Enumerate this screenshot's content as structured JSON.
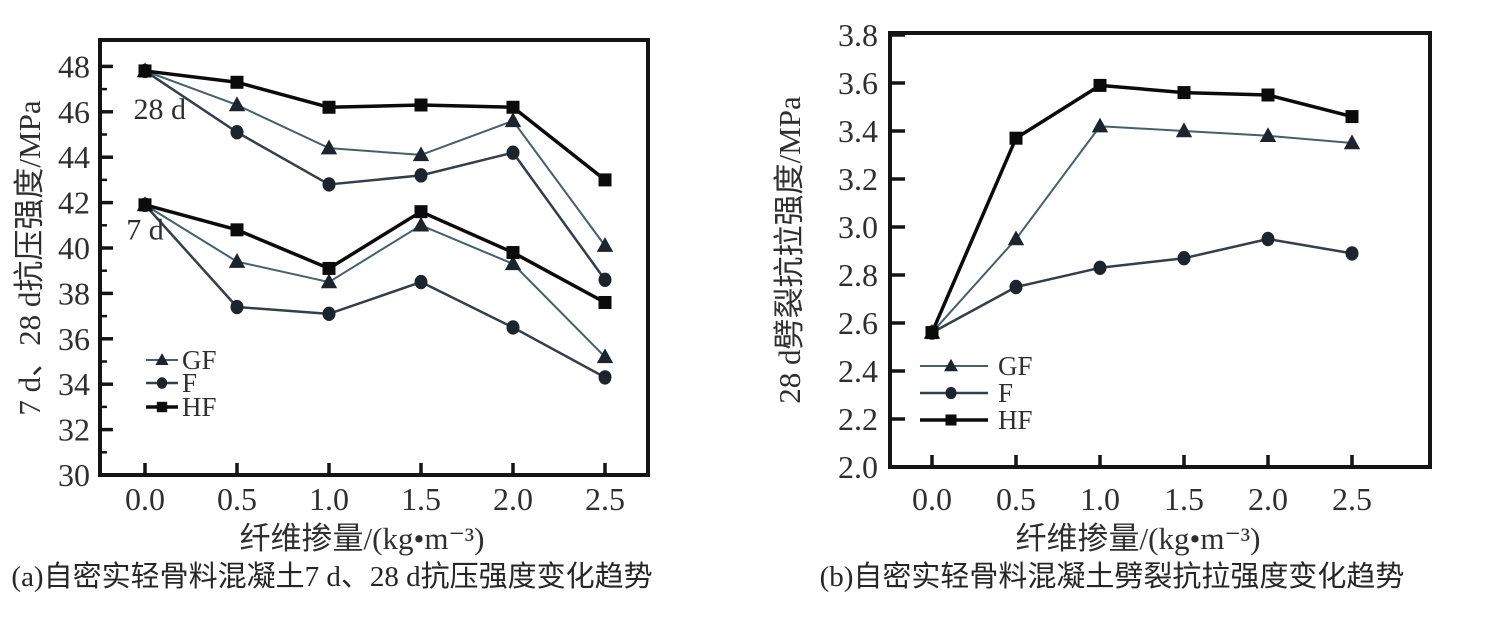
{
  "figure": {
    "background": "#ffffff",
    "colors": {
      "GF": "#44616b",
      "F": "#333f4b",
      "HF": "#0b0b0b",
      "marker_fill": "#1d242e",
      "axis": "#141414",
      "text": "#2f2f2f"
    }
  },
  "chart_data": [
    {
      "id": "a",
      "type": "line",
      "caption": "(a)自密实轻骨料混凝土7 d、28 d抗压强度变化趋势",
      "xlabel": "纤维掺量/(kg•m⁻³)",
      "ylabel": "7 d、28 d抗压强度/MPa",
      "x": [
        0.0,
        0.5,
        1.0,
        1.5,
        2.0,
        2.5
      ],
      "xtick_labels": [
        "0.0",
        "0.5",
        "1.0",
        "1.5",
        "2.0",
        "2.5"
      ],
      "xlim": [
        -0.25,
        2.74
      ],
      "ylim": [
        30,
        49.2
      ],
      "yticks": [
        30,
        32,
        34,
        36,
        38,
        40,
        42,
        44,
        46,
        48
      ],
      "ytick_labels": [
        "30",
        "32",
        "34",
        "36",
        "38",
        "40",
        "42",
        "44",
        "46",
        "48"
      ],
      "yticks_minor": [
        31,
        33,
        35,
        37,
        39,
        41,
        43,
        45,
        47
      ],
      "grid": false,
      "legend_position": "lower-left-inside",
      "legend": [
        "GF",
        "F",
        "HF"
      ],
      "annotations": [
        {
          "text": "28 d",
          "x": 0.08,
          "y": 46.1
        },
        {
          "text": "7 d",
          "x": 0.0,
          "y": 40.8
        }
      ],
      "groups": [
        {
          "label": "28 d",
          "series": [
            {
              "name": "GF",
              "marker": "triangle",
              "values": [
                47.8,
                46.3,
                44.4,
                44.1,
                45.6,
                40.1
              ]
            },
            {
              "name": "F",
              "marker": "circle",
              "values": [
                47.8,
                45.1,
                42.8,
                43.2,
                44.2,
                38.6
              ]
            },
            {
              "name": "HF",
              "marker": "square",
              "values": [
                47.8,
                47.3,
                46.2,
                46.3,
                46.2,
                43.0
              ]
            }
          ]
        },
        {
          "label": "7 d",
          "series": [
            {
              "name": "GF",
              "marker": "triangle",
              "values": [
                41.9,
                39.4,
                38.5,
                41.0,
                39.3,
                35.2
              ]
            },
            {
              "name": "F",
              "marker": "circle",
              "values": [
                41.9,
                37.4,
                37.1,
                38.5,
                36.5,
                34.3
              ]
            },
            {
              "name": "HF",
              "marker": "square",
              "values": [
                41.9,
                40.8,
                39.1,
                41.6,
                39.8,
                37.6
              ]
            }
          ]
        }
      ]
    },
    {
      "id": "b",
      "type": "line",
      "caption": "(b)自密实轻骨料混凝土劈裂抗拉强度变化趋势",
      "xlabel": "纤维掺量/(kg•m⁻³)",
      "ylabel": "28 d劈裂抗拉强度/MPa",
      "x": [
        0.0,
        0.5,
        1.0,
        1.5,
        2.0,
        2.5
      ],
      "xtick_labels": [
        "0.0",
        "0.5",
        "1.0",
        "1.5",
        "2.0",
        "2.5"
      ],
      "xlim": [
        -0.25,
        2.96
      ],
      "ylim": [
        2.0,
        3.81
      ],
      "yticks": [
        2.0,
        2.2,
        2.4,
        2.6,
        2.8,
        3.0,
        3.2,
        3.4,
        3.6,
        3.8
      ],
      "ytick_labels": [
        "2.0",
        "2.2",
        "2.4",
        "2.6",
        "2.8",
        "3.0",
        "3.2",
        "3.4",
        "3.6",
        "3.8"
      ],
      "yticks_minor": [],
      "grid": false,
      "legend_position": "lower-left-inside",
      "legend": [
        "GF",
        "F",
        "HF"
      ],
      "annotations": [],
      "groups": [
        {
          "label": "28 d",
          "series": [
            {
              "name": "GF",
              "marker": "triangle",
              "values": [
                2.56,
                2.95,
                3.42,
                3.4,
                3.38,
                3.35
              ]
            },
            {
              "name": "F",
              "marker": "circle",
              "values": [
                2.56,
                2.75,
                2.83,
                2.87,
                2.95,
                2.89
              ]
            },
            {
              "name": "HF",
              "marker": "square",
              "values": [
                2.56,
                3.37,
                3.59,
                3.56,
                3.55,
                3.46
              ]
            }
          ]
        }
      ]
    }
  ]
}
